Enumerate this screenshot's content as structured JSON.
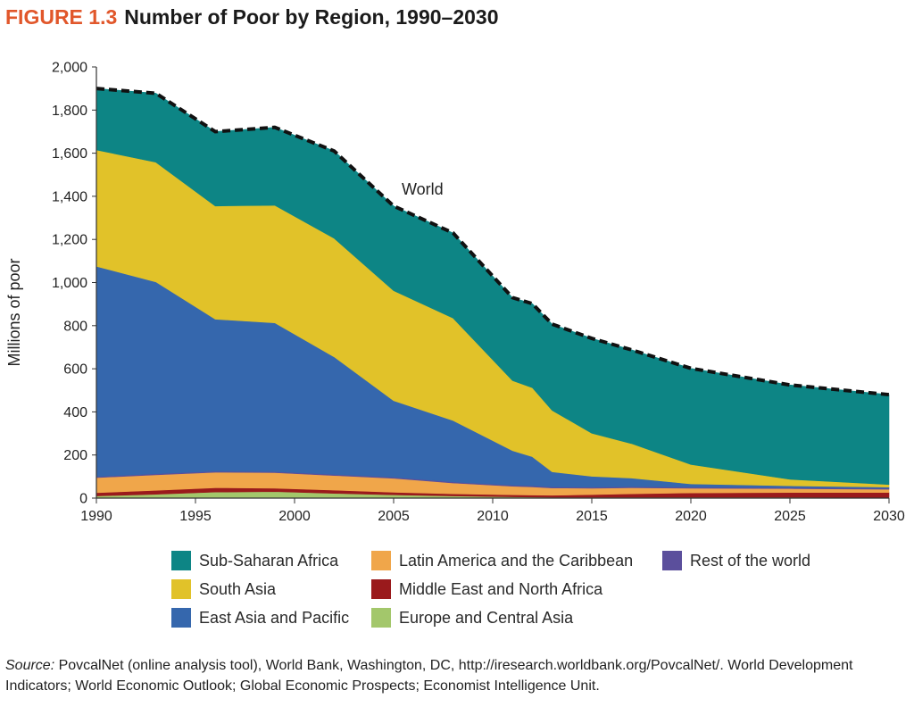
{
  "figure": {
    "label": "FIGURE 1.3",
    "title": "Number of Poor by Region, 1990–2030"
  },
  "chart_data": {
    "type": "area",
    "stacked": true,
    "ylabel": "Millions of poor",
    "xlabel": "",
    "ylim": [
      0,
      2000
    ],
    "xlim": [
      1990,
      2030
    ],
    "y_ticks": [
      "0",
      "200",
      "400",
      "600",
      "800",
      "1,000",
      "1,200",
      "1,400",
      "1,600",
      "1,800",
      "2,000"
    ],
    "y_tick_values": [
      0,
      200,
      400,
      600,
      800,
      1000,
      1200,
      1400,
      1600,
      1800,
      2000
    ],
    "x_ticks": [
      "1990",
      "1995",
      "2000",
      "2005",
      "2010",
      "2015",
      "2020",
      "2025",
      "2030"
    ],
    "x_tick_values": [
      1990,
      1995,
      2000,
      2005,
      2010,
      2015,
      2020,
      2025,
      2030
    ],
    "grid": false,
    "x": [
      1990,
      1993,
      1996,
      1999,
      2002,
      2005,
      2008,
      2011,
      2012,
      2013,
      2015,
      2017,
      2020,
      2025,
      2030
    ],
    "series": [
      {
        "name": "Europe and Central Asia",
        "color": "#a3c76b",
        "values": [
          10,
          18,
          28,
          30,
          22,
          15,
          10,
          6,
          5,
          4,
          4,
          4,
          4,
          4,
          3
        ]
      },
      {
        "name": "Middle East and North Africa",
        "color": "#9a1a1c",
        "values": [
          15,
          18,
          20,
          16,
          15,
          12,
          10,
          9,
          9,
          9,
          12,
          16,
          20,
          22,
          23
        ]
      },
      {
        "name": "Latin America and the Caribbean",
        "color": "#f0a64a",
        "values": [
          70,
          72,
          72,
          72,
          68,
          65,
          50,
          40,
          38,
          34,
          30,
          28,
          22,
          18,
          15
        ]
      },
      {
        "name": "Rest of the world",
        "color": "#5b4f9c",
        "values": [
          5,
          5,
          5,
          5,
          5,
          5,
          5,
          5,
          5,
          5,
          5,
          5,
          5,
          5,
          5
        ]
      },
      {
        "name": "East Asia and Pacific",
        "color": "#3567ad",
        "values": [
          975,
          890,
          705,
          690,
          545,
          355,
          285,
          160,
          135,
          70,
          50,
          40,
          15,
          8,
          5
        ]
      },
      {
        "name": "South Asia",
        "color": "#e1c229",
        "values": [
          540,
          555,
          525,
          545,
          550,
          510,
          475,
          325,
          320,
          285,
          200,
          160,
          90,
          30,
          12
        ]
      },
      {
        "name": "Sub-Saharan Africa",
        "color": "#0d8585",
        "values": [
          285,
          320,
          345,
          362,
          405,
          393,
          395,
          385,
          390,
          400,
          440,
          435,
          446,
          438,
          417
        ]
      }
    ],
    "total": {
      "name": "World",
      "values": [
        1900,
        1878,
        1700,
        1720,
        1610,
        1355,
        1230,
        930,
        902,
        807,
        741,
        688,
        602,
        525,
        480
      ]
    },
    "annotations": [
      {
        "text": "World"
      }
    ],
    "legend_order": [
      "Sub-Saharan Africa",
      "South Asia",
      "East Asia and Pacific",
      "Latin America and the Caribbean",
      "Middle East and North Africa",
      "Europe and Central Asia",
      "Rest of the world"
    ],
    "legend_placement": "bottom"
  },
  "source": {
    "label": "Source:",
    "text": " PovcalNet (online analysis tool), World Bank, Washington, DC, http://iresearch.worldbank.org/PovcalNet/. World Development Indicators; World Economic Outlook; Global Economic Prospects; Economist Intelligence Unit."
  }
}
